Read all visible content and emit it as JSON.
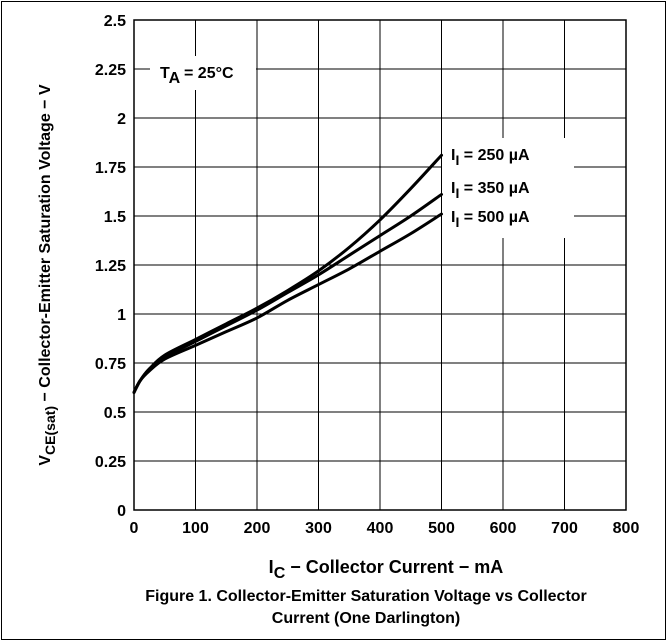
{
  "chart_data": {
    "type": "line",
    "xlabel_main": "I",
    "xlabel_sub": "C",
    "xlabel_rest": " − Collector Current − mA",
    "ylabel_main": "V",
    "ylabel_sub": "CE(sat)",
    "ylabel_rest": " − Collector-Emitter Saturation Voltage − V",
    "xlim": [
      0,
      800
    ],
    "ylim": [
      0,
      2.5
    ],
    "x_ticks": [
      "0",
      "100",
      "200",
      "300",
      "400",
      "500",
      "600",
      "700",
      "800"
    ],
    "y_ticks": [
      "0",
      "0.25",
      "0.5",
      "0.75",
      "1",
      "1.25",
      "1.5",
      "1.75",
      "2",
      "2.25",
      "2.5"
    ],
    "grid": true,
    "annotation": {
      "main": "T",
      "sub": "A",
      "rest": " = 25°C"
    },
    "series": [
      {
        "name_main": "I",
        "name_sub": "I",
        "name_rest": " = 250 µA",
        "x": [
          0,
          10,
          25,
          50,
          100,
          150,
          200,
          250,
          300,
          350,
          400,
          450,
          500
        ],
        "y": [
          0.6,
          0.66,
          0.72,
          0.79,
          0.87,
          0.95,
          1.03,
          1.12,
          1.22,
          1.34,
          1.48,
          1.64,
          1.81
        ]
      },
      {
        "name_main": "I",
        "name_sub": "I",
        "name_rest": " = 350 µA",
        "x": [
          0,
          10,
          25,
          50,
          100,
          150,
          200,
          250,
          300,
          350,
          400,
          450,
          500
        ],
        "y": [
          0.6,
          0.66,
          0.72,
          0.78,
          0.86,
          0.94,
          1.02,
          1.11,
          1.2,
          1.3,
          1.4,
          1.5,
          1.61
        ]
      },
      {
        "name_main": "I",
        "name_sub": "I",
        "name_rest": " = 500 µA",
        "x": [
          0,
          10,
          25,
          50,
          100,
          150,
          200,
          250,
          300,
          350,
          400,
          450,
          500
        ],
        "y": [
          0.6,
          0.66,
          0.71,
          0.77,
          0.84,
          0.91,
          0.98,
          1.07,
          1.15,
          1.23,
          1.32,
          1.41,
          1.51
        ]
      }
    ]
  },
  "caption": {
    "line1": "Figure 1. Collector-Emitter Saturation Voltage vs Collector",
    "line2": "Current (One Darlington)"
  }
}
